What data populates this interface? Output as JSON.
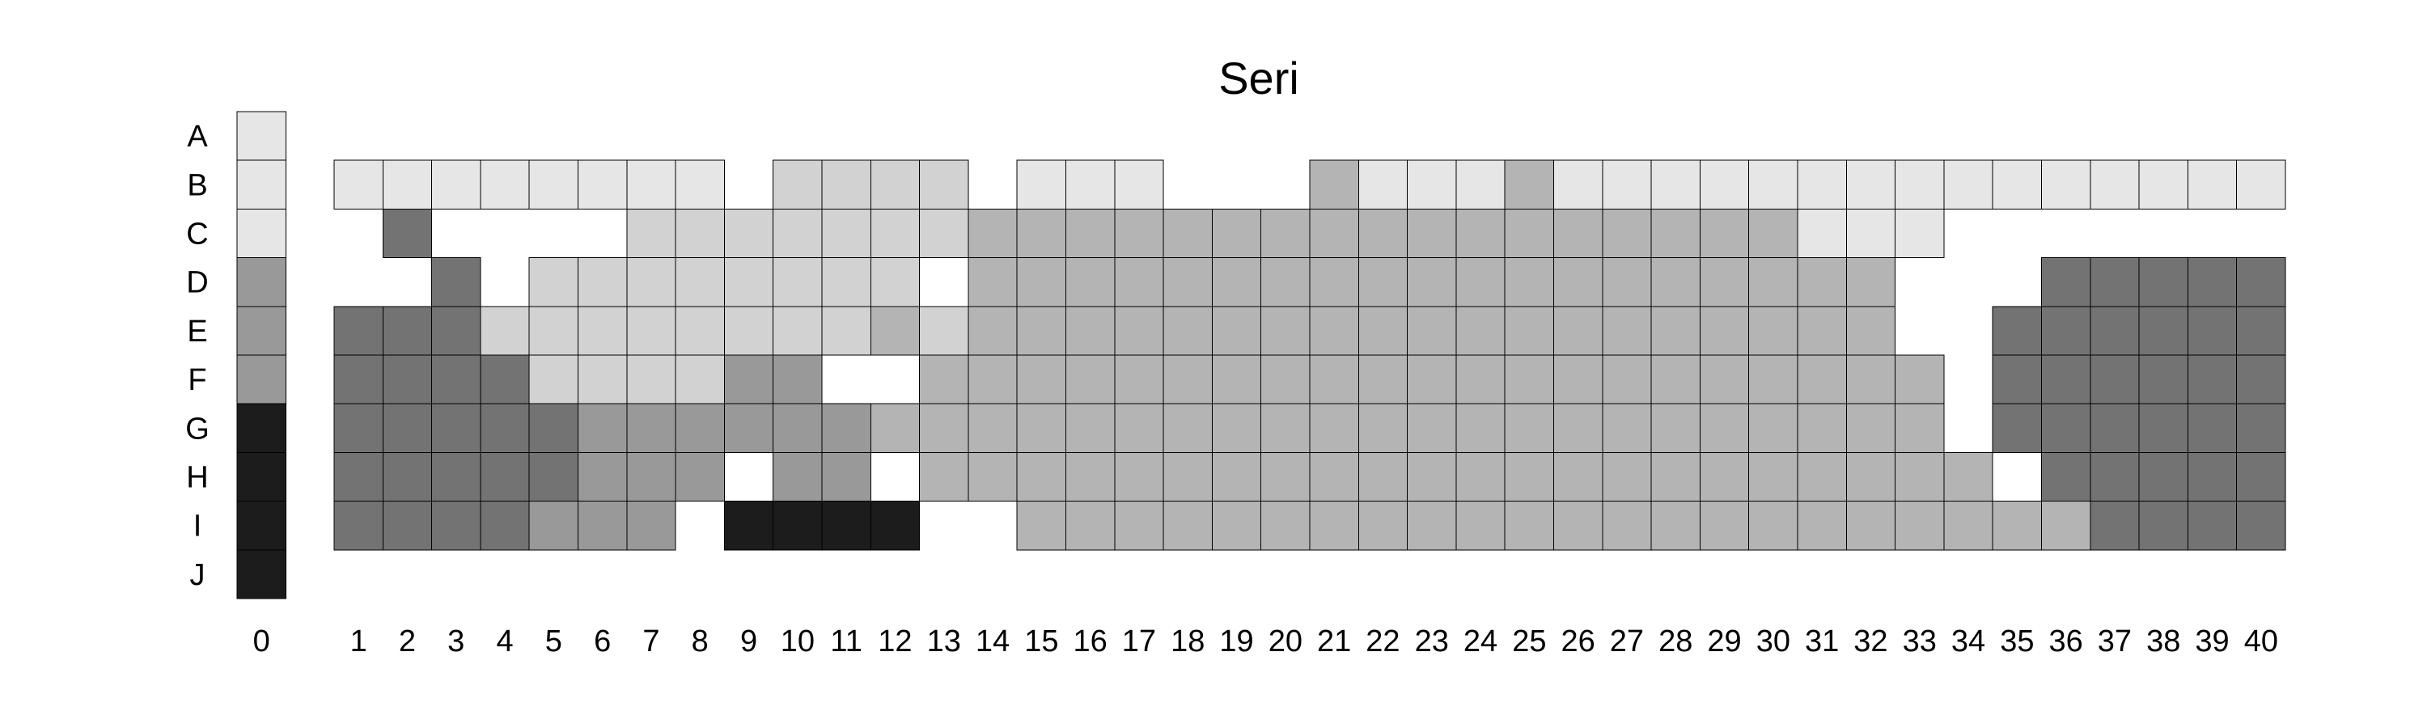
{
  "chart_data": {
    "type": "heatmap",
    "title": "Seri",
    "rows": [
      "A",
      "B",
      "C",
      "D",
      "E",
      "F",
      "G",
      "H",
      "I",
      "J"
    ],
    "columns": [
      "0",
      "1",
      "2",
      "3",
      "4",
      "5",
      "6",
      "7",
      "8",
      "9",
      "10",
      "11",
      "12",
      "13",
      "14",
      "15",
      "16",
      "17",
      "18",
      "19",
      "20",
      "21",
      "22",
      "23",
      "24",
      "25",
      "26",
      "27",
      "28",
      "29",
      "30",
      "31",
      "32",
      "33",
      "34",
      "35",
      "36",
      "37",
      "38",
      "39",
      "40"
    ],
    "levels": {
      "1": "#e6e6e6",
      "2": "#d2d2d2",
      "3": "#b4b4b4",
      "4": "#999999",
      "5": "#737373",
      "6": "#1c1c1c"
    },
    "cells": [
      [
        1,
        null,
        null,
        null,
        null,
        null,
        null,
        null,
        null,
        null,
        null,
        null,
        null,
        null,
        null,
        null,
        null,
        null,
        null,
        null,
        null,
        null,
        null,
        null,
        null,
        null,
        null,
        null,
        null,
        null,
        null,
        null,
        null,
        null,
        null,
        null,
        null,
        null,
        null,
        null,
        null
      ],
      [
        1,
        1,
        1,
        1,
        1,
        1,
        1,
        1,
        1,
        null,
        2,
        2,
        2,
        2,
        null,
        1,
        1,
        1,
        null,
        null,
        null,
        3,
        1,
        1,
        1,
        3,
        1,
        1,
        1,
        1,
        1,
        1,
        1,
        1,
        1,
        1,
        1,
        1,
        1,
        1,
        1
      ],
      [
        1,
        null,
        5,
        null,
        null,
        null,
        null,
        2,
        2,
        2,
        2,
        2,
        2,
        2,
        3,
        3,
        3,
        3,
        3,
        3,
        3,
        3,
        3,
        3,
        3,
        3,
        3,
        3,
        3,
        3,
        3,
        1,
        1,
        1,
        null,
        null,
        null,
        null,
        null,
        null,
        null
      ],
      [
        4,
        null,
        null,
        5,
        null,
        2,
        2,
        2,
        2,
        2,
        2,
        2,
        2,
        null,
        3,
        3,
        3,
        3,
        3,
        3,
        3,
        3,
        3,
        3,
        3,
        3,
        3,
        3,
        3,
        3,
        3,
        3,
        3,
        null,
        null,
        null,
        5,
        5,
        5,
        5,
        5
      ],
      [
        4,
        5,
        5,
        5,
        2,
        2,
        2,
        2,
        2,
        2,
        2,
        2,
        3,
        2,
        3,
        3,
        3,
        3,
        3,
        3,
        3,
        3,
        3,
        3,
        3,
        3,
        3,
        3,
        3,
        3,
        3,
        3,
        3,
        null,
        null,
        5,
        5,
        5,
        5,
        5,
        5
      ],
      [
        4,
        5,
        5,
        5,
        5,
        2,
        2,
        2,
        2,
        4,
        4,
        null,
        null,
        3,
        3,
        3,
        3,
        3,
        3,
        3,
        3,
        3,
        3,
        3,
        3,
        3,
        3,
        3,
        3,
        3,
        3,
        3,
        3,
        3,
        null,
        5,
        5,
        5,
        5,
        5,
        5
      ],
      [
        6,
        5,
        5,
        5,
        5,
        5,
        4,
        4,
        4,
        4,
        4,
        4,
        3,
        3,
        3,
        3,
        3,
        3,
        3,
        3,
        3,
        3,
        3,
        3,
        3,
        3,
        3,
        3,
        3,
        3,
        3,
        3,
        3,
        3,
        null,
        5,
        5,
        5,
        5,
        5,
        5
      ],
      [
        6,
        5,
        5,
        5,
        5,
        5,
        4,
        4,
        4,
        null,
        4,
        4,
        null,
        3,
        3,
        3,
        3,
        3,
        3,
        3,
        3,
        3,
        3,
        3,
        3,
        3,
        3,
        3,
        3,
        3,
        3,
        3,
        3,
        3,
        3,
        null,
        5,
        5,
        5,
        5,
        5
      ],
      [
        6,
        5,
        5,
        5,
        5,
        4,
        4,
        4,
        null,
        6,
        6,
        6,
        6,
        null,
        null,
        3,
        3,
        3,
        3,
        3,
        3,
        3,
        3,
        3,
        3,
        3,
        3,
        3,
        3,
        3,
        3,
        3,
        3,
        3,
        3,
        3,
        3,
        5,
        5,
        5,
        5
      ],
      [
        6,
        null,
        null,
        null,
        null,
        null,
        null,
        null,
        null,
        null,
        null,
        null,
        null,
        null,
        null,
        null,
        null,
        null,
        null,
        null,
        null,
        null,
        null,
        null,
        null,
        null,
        null,
        null,
        null,
        null,
        null,
        null,
        null,
        null,
        null,
        null,
        null,
        null,
        null,
        null,
        null
      ]
    ]
  }
}
